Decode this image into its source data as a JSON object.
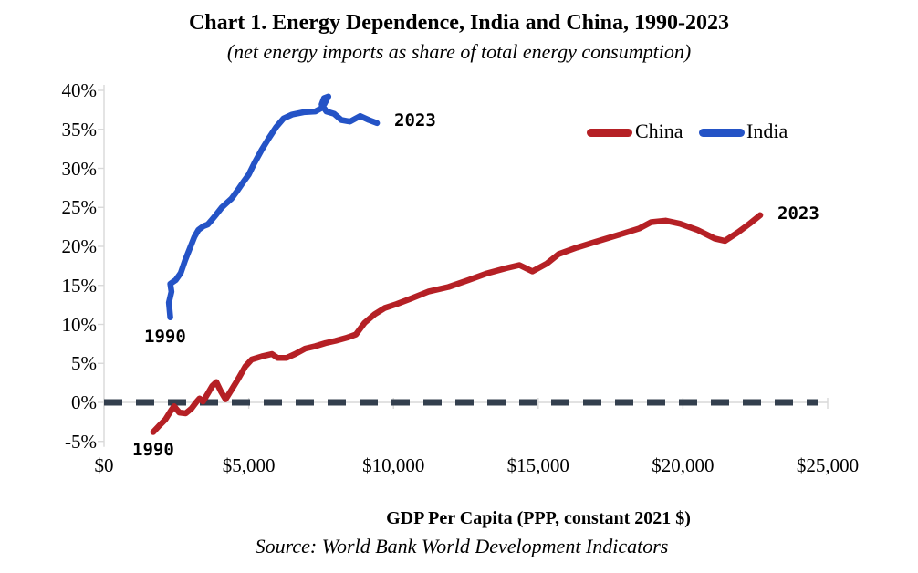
{
  "chart_data": {
    "type": "line",
    "title": "Chart 1. Energy Dependence, India and China, 1990-2023",
    "subtitle": "(net energy imports as share of total energy consumption)",
    "source": "Source: World Bank World Development Indicators",
    "xlabel": "GDP Per Capita (PPP, constant 2021 $)",
    "ylabel": "",
    "xlim": [
      0,
      25000
    ],
    "ylim": [
      -5,
      40
    ],
    "grid": false,
    "legend_position": "top-right-inside",
    "x_ticks": [
      {
        "v": 0,
        "label": "$0"
      },
      {
        "v": 5000,
        "label": "$5,000"
      },
      {
        "v": 10000,
        "label": "$10,000"
      },
      {
        "v": 15000,
        "label": "$15,000"
      },
      {
        "v": 20000,
        "label": "$20,000"
      },
      {
        "v": 25000,
        "label": "$25,000"
      }
    ],
    "y_ticks": [
      {
        "v": 40,
        "label": "40%"
      },
      {
        "v": 35,
        "label": "35%"
      },
      {
        "v": 30,
        "label": "30%"
      },
      {
        "v": 25,
        "label": "25%"
      },
      {
        "v": 20,
        "label": "20%"
      },
      {
        "v": 15,
        "label": "15%"
      },
      {
        "v": 10,
        "label": "10%"
      },
      {
        "v": 5,
        "label": "5%"
      },
      {
        "v": 0,
        "label": "0%"
      },
      {
        "v": -5,
        "label": "-5%"
      }
    ],
    "zero_line": {
      "y": 0,
      "style": "dashed",
      "color": "#333F4E"
    },
    "axis_color": "#D9D9D9",
    "series": [
      {
        "name": "China",
        "color": "#B52025",
        "points": [
          [
            1700,
            -3.8
          ],
          [
            1900,
            -3.0
          ],
          [
            2120,
            -2.2
          ],
          [
            2320,
            -1.0
          ],
          [
            2420,
            -0.5
          ],
          [
            2600,
            -1.3
          ],
          [
            2820,
            -1.4
          ],
          [
            3020,
            -0.8
          ],
          [
            3180,
            0.0
          ],
          [
            3300,
            0.5
          ],
          [
            3420,
            0.1
          ],
          [
            3580,
            1.1
          ],
          [
            3740,
            2.1
          ],
          [
            3880,
            2.6
          ],
          [
            4040,
            1.4
          ],
          [
            4200,
            0.4
          ],
          [
            4420,
            1.7
          ],
          [
            4650,
            3.1
          ],
          [
            4880,
            4.6
          ],
          [
            5100,
            5.5
          ],
          [
            5450,
            5.9
          ],
          [
            5800,
            6.2
          ],
          [
            6000,
            5.7
          ],
          [
            6300,
            5.7
          ],
          [
            6600,
            6.2
          ],
          [
            6950,
            6.9
          ],
          [
            7300,
            7.2
          ],
          [
            7650,
            7.6
          ],
          [
            8000,
            7.9
          ],
          [
            8400,
            8.3
          ],
          [
            8700,
            8.7
          ],
          [
            9000,
            10.2
          ],
          [
            9350,
            11.3
          ],
          [
            9700,
            12.1
          ],
          [
            10100,
            12.6
          ],
          [
            10600,
            13.3
          ],
          [
            11200,
            14.2
          ],
          [
            11900,
            14.8
          ],
          [
            12600,
            15.7
          ],
          [
            13200,
            16.5
          ],
          [
            13900,
            17.2
          ],
          [
            14350,
            17.6
          ],
          [
            14800,
            16.8
          ],
          [
            15300,
            17.8
          ],
          [
            15700,
            19.0
          ],
          [
            16300,
            19.8
          ],
          [
            17000,
            20.6
          ],
          [
            17800,
            21.5
          ],
          [
            18500,
            22.3
          ],
          [
            18900,
            23.1
          ],
          [
            19400,
            23.3
          ],
          [
            19900,
            22.9
          ],
          [
            20500,
            22.1
          ],
          [
            21100,
            21.0
          ],
          [
            21450,
            20.7
          ],
          [
            21900,
            21.8
          ],
          [
            22300,
            22.9
          ],
          [
            22670,
            24.0
          ]
        ]
      },
      {
        "name": "India",
        "color": "#2453C6",
        "points": [
          [
            2290,
            10.9
          ],
          [
            2240,
            12.8
          ],
          [
            2330,
            14.2
          ],
          [
            2290,
            15.2
          ],
          [
            2480,
            15.7
          ],
          [
            2650,
            16.6
          ],
          [
            2800,
            18.2
          ],
          [
            2960,
            19.7
          ],
          [
            3120,
            21.2
          ],
          [
            3260,
            22.1
          ],
          [
            3440,
            22.6
          ],
          [
            3580,
            22.8
          ],
          [
            3700,
            23.3
          ],
          [
            3880,
            24.1
          ],
          [
            4070,
            25.0
          ],
          [
            4250,
            25.6
          ],
          [
            4400,
            26.1
          ],
          [
            4600,
            27.1
          ],
          [
            4800,
            28.2
          ],
          [
            5000,
            29.2
          ],
          [
            5200,
            30.7
          ],
          [
            5450,
            32.4
          ],
          [
            5700,
            33.9
          ],
          [
            5950,
            35.3
          ],
          [
            6200,
            36.4
          ],
          [
            6500,
            36.9
          ],
          [
            6900,
            37.2
          ],
          [
            7300,
            37.3
          ],
          [
            7550,
            37.8
          ],
          [
            7750,
            39.2
          ],
          [
            7600,
            39.0
          ],
          [
            7520,
            38.2
          ],
          [
            7680,
            37.3
          ],
          [
            7950,
            37.0
          ],
          [
            8200,
            36.2
          ],
          [
            8500,
            36.0
          ],
          [
            8850,
            36.7
          ],
          [
            9150,
            36.2
          ],
          [
            9430,
            35.8
          ]
        ]
      }
    ],
    "annotations": [
      {
        "series": "India",
        "text": "1990"
      },
      {
        "series": "India",
        "text": "2023"
      },
      {
        "series": "China",
        "text": "1990"
      },
      {
        "series": "China",
        "text": "2023"
      }
    ]
  }
}
